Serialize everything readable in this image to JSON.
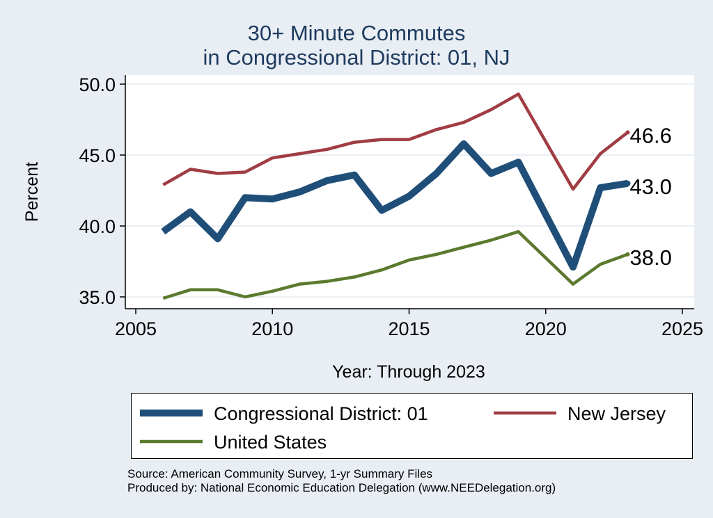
{
  "chart_data": {
    "type": "line",
    "title": [
      "30+ Minute Commutes",
      "in Congressional District:  01, NJ"
    ],
    "xlabel": "Year: Through 2023",
    "ylabel": "Percent",
    "xlim": [
      2005,
      2025
    ],
    "ylim": [
      35,
      50
    ],
    "x_ticks": [
      2005,
      2010,
      2015,
      2020,
      2025
    ],
    "x_tick_labels": [
      "2005",
      "2010",
      "2015",
      "2020",
      "2025"
    ],
    "y_ticks": [
      35,
      40,
      45,
      50
    ],
    "y_tick_labels": [
      "35.0",
      "40.0",
      "45.0",
      "50.0"
    ],
    "grid": true,
    "legend_position": "bottom",
    "x": [
      2006,
      2007,
      2008,
      2009,
      2010,
      2011,
      2012,
      2013,
      2014,
      2015,
      2016,
      2017,
      2018,
      2019,
      2020,
      2021,
      2022,
      2023
    ],
    "series": [
      {
        "name": "Congressional District:  01",
        "color": "#1f4e79",
        "values": [
          39.6,
          41.0,
          39.1,
          42.0,
          41.9,
          42.4,
          43.2,
          43.6,
          41.1,
          42.1,
          43.7,
          45.8,
          43.7,
          44.5,
          null,
          37.1,
          42.7,
          43.0
        ],
        "end_label": "43.0"
      },
      {
        "name": "New Jersey",
        "color": "#a03c43",
        "values": [
          42.9,
          44.0,
          43.7,
          43.8,
          44.8,
          45.1,
          45.4,
          45.9,
          46.1,
          46.1,
          46.8,
          47.3,
          48.2,
          49.3,
          null,
          42.6,
          45.1,
          46.6
        ],
        "end_label": "46.6"
      },
      {
        "name": "United States",
        "color": "#5b7a2e",
        "values": [
          34.9,
          35.5,
          35.5,
          35.0,
          35.4,
          35.9,
          36.1,
          36.4,
          36.9,
          37.6,
          38.0,
          38.5,
          39.0,
          39.6,
          null,
          35.9,
          37.3,
          38.0
        ],
        "end_label": "38.0"
      }
    ]
  },
  "legend": {
    "items": [
      {
        "label": "Congressional District:  01",
        "color": "#1f4e79"
      },
      {
        "label": "New Jersey",
        "color": "#a03c43"
      },
      {
        "label": "United States",
        "color": "#5b7a2e"
      }
    ]
  },
  "source": {
    "line1": "Source: American Community Survey, 1-yr Summary Files",
    "line2": "Produced by: National Economic Education Delegation (www.NEEDelegation.org)"
  }
}
